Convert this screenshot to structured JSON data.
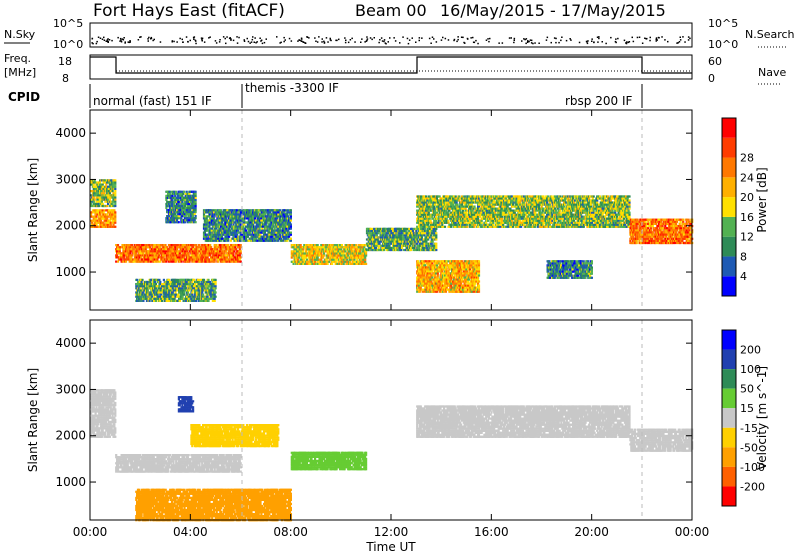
{
  "header": {
    "title": "Fort Hays East (fitACF)",
    "beam": "Beam 00",
    "dates": "16/May/2015 - 17/May/2015"
  },
  "noise_panel": {
    "left_label": "N.Sky",
    "right_label": "N.Search",
    "yticks": [
      "10^5",
      "10^0"
    ]
  },
  "freq_panel": {
    "left_label_1": "Freq.",
    "left_label_2": "[MHz]",
    "left_ticks": [
      "18",
      "8"
    ],
    "right_label": "Nave",
    "right_ticks": [
      "60",
      "0"
    ]
  },
  "cpid": {
    "label": "CPID",
    "segments": [
      "normal (fast) 151 IF",
      "themis -3300 IF",
      "rbsp 200 IF"
    ]
  },
  "x_axis": {
    "label": "Time UT",
    "ticks": [
      "00:00",
      "04:00",
      "08:00",
      "12:00",
      "16:00",
      "20:00",
      "00:00"
    ]
  },
  "power_colorbar": {
    "label": "Power [dB]",
    "ticks": [
      "4",
      "8",
      "12",
      "16",
      "20",
      "24",
      "28"
    ],
    "colors": [
      "#0000ff",
      "#1e5ab4",
      "#2e8b57",
      "#52b152",
      "#ffe000",
      "#ffb000",
      "#ff7800",
      "#ff3c00",
      "#ff0000"
    ]
  },
  "velocity_colorbar": {
    "label": "Velocity [m s^-1]",
    "ticks": [
      "200",
      "100",
      "50",
      "15",
      "-15",
      "-50",
      "-100",
      "-200"
    ],
    "colors": [
      "#0000ff",
      "#2040b0",
      "#2e8b57",
      "#66cc33",
      "#c8c8c8",
      "#ffd000",
      "#ffa000",
      "#ff6000",
      "#ff0000"
    ]
  },
  "chart_data": [
    {
      "type": "heatmap",
      "title": "Power",
      "xlabel": "Time UT",
      "ylabel": "Slant Range [km]",
      "xlim": [
        0,
        24
      ],
      "ylim": [
        180,
        4500
      ],
      "yticks": [
        1000,
        2000,
        3000,
        4000
      ],
      "colorbar": "Power [dB]",
      "bands": [
        {
          "t0": 0.0,
          "t1": 1.0,
          "r0": 2000,
          "r1": 2400,
          "power": 20
        },
        {
          "t0": 0.0,
          "t1": 1.0,
          "r0": 2450,
          "r1": 3050,
          "power": 12
        },
        {
          "t0": 1.0,
          "t1": 6.0,
          "r0": 1250,
          "r1": 1650,
          "power": 22
        },
        {
          "t0": 3.0,
          "t1": 4.2,
          "r0": 2100,
          "r1": 2800,
          "power": 8
        },
        {
          "t0": 1.8,
          "t1": 5.0,
          "r0": 400,
          "r1": 900,
          "power": 10
        },
        {
          "t0": 4.5,
          "t1": 8.0,
          "r0": 1700,
          "r1": 2400,
          "power": 8
        },
        {
          "t0": 8.0,
          "t1": 11.0,
          "r0": 1200,
          "r1": 1650,
          "power": 16
        },
        {
          "t0": 11.0,
          "t1": 13.8,
          "r0": 1500,
          "r1": 2000,
          "power": 10
        },
        {
          "t0": 13.0,
          "t1": 15.5,
          "r0": 600,
          "r1": 1300,
          "power": 18
        },
        {
          "t0": 13.0,
          "t1": 21.5,
          "r0": 2000,
          "r1": 2700,
          "power": 12
        },
        {
          "t0": 21.5,
          "t1": 24.0,
          "r0": 1650,
          "r1": 2200,
          "power": 22
        },
        {
          "t0": 18.2,
          "t1": 20.0,
          "r0": 900,
          "r1": 1300,
          "power": 8
        }
      ]
    },
    {
      "type": "heatmap",
      "title": "Velocity",
      "xlabel": "Time UT",
      "ylabel": "Slant Range [km]",
      "xlim": [
        0,
        24
      ],
      "ylim": [
        180,
        4500
      ],
      "yticks": [
        1000,
        2000,
        3000,
        4000
      ],
      "colorbar": "Velocity [m s^-1]",
      "bands": [
        {
          "t0": 0.0,
          "t1": 1.0,
          "r0": 2000,
          "r1": 3050,
          "velocity": 0
        },
        {
          "t0": 1.0,
          "t1": 6.0,
          "r0": 1250,
          "r1": 1650,
          "velocity": 0
        },
        {
          "t0": 3.5,
          "t1": 4.1,
          "r0": 2550,
          "r1": 2900,
          "velocity": 120
        },
        {
          "t0": 4.0,
          "t1": 7.5,
          "r0": 1800,
          "r1": 2300,
          "velocity": -40
        },
        {
          "t0": 8.0,
          "t1": 11.0,
          "r0": 1300,
          "r1": 1700,
          "velocity": 40
        },
        {
          "t0": 13.0,
          "t1": 21.5,
          "r0": 2000,
          "r1": 2700,
          "velocity": 0
        },
        {
          "t0": 21.5,
          "t1": 24.0,
          "r0": 1700,
          "r1": 2200,
          "velocity": 0
        },
        {
          "t0": 1.8,
          "t1": 8.0,
          "r0": 200,
          "r1": 900,
          "velocity": -60
        }
      ]
    }
  ]
}
